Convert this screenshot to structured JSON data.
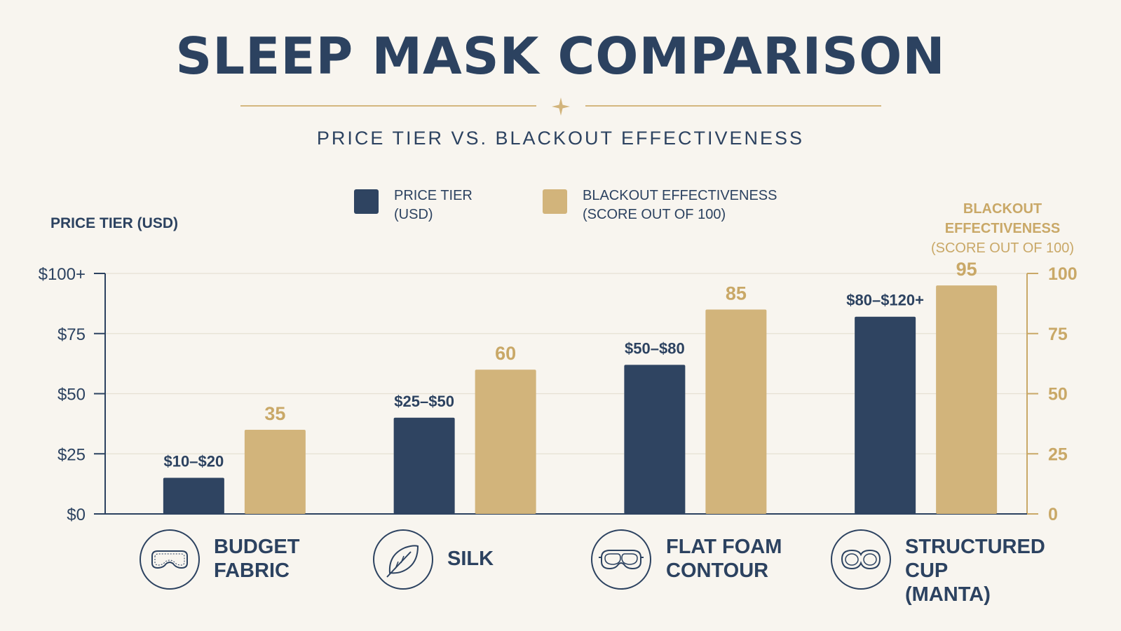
{
  "title": "SLEEP MASK COMPARISON",
  "subtitle": "PRICE TIER VS. BLACKOUT EFFECTIVENESS",
  "legend": {
    "price": {
      "line1": "PRICE TIER",
      "line2": "(USD)"
    },
    "blackout": {
      "line1": "BLACKOUT EFFECTIVENESS",
      "line2": "(SCORE OUT OF 100)"
    }
  },
  "left_axis_title": "PRICE TIER (USD)",
  "right_axis_title": {
    "line1": "BLACKOUT EFFECTIVENESS",
    "line2": "(SCORE OUT OF 100)"
  },
  "colors": {
    "price": "#2f4461",
    "blackout": "#d2b47b",
    "axis": "#2c4260",
    "gold_text": "#c9a867"
  },
  "categories_display": [
    {
      "line1": "BUDGET",
      "line2": "FABRIC",
      "icon": "mask-outline-icon"
    },
    {
      "line1": "SILK",
      "line2": "",
      "icon": "leaf-icon"
    },
    {
      "line1": "FLAT FOAM",
      "line2": "CONTOUR",
      "icon": "foam-mask-icon"
    },
    {
      "line1": "STRUCTURED",
      "line2": "CUP (MANTA)",
      "icon": "cup-mask-icon"
    }
  ],
  "chart_data": {
    "type": "bar",
    "title": "SLEEP MASK COMPARISON",
    "subtitle": "PRICE TIER VS. BLACKOUT EFFECTIVENESS",
    "categories": [
      "BUDGET FABRIC",
      "SILK",
      "FLAT FOAM CONTOUR",
      "STRUCTURED CUP (MANTA)"
    ],
    "series": [
      {
        "name": "PRICE TIER (USD)",
        "axis": "left",
        "values": [
          15,
          40,
          62,
          82
        ],
        "labels": [
          "$10–$20",
          "$25–$50",
          "$50–$80",
          "$80–$120+"
        ]
      },
      {
        "name": "BLACKOUT EFFECTIVENESS (SCORE OUT OF 100)",
        "axis": "right",
        "values": [
          35,
          60,
          85,
          95
        ],
        "labels": [
          "35",
          "60",
          "85",
          "95"
        ]
      }
    ],
    "y_left": {
      "label": "PRICE TIER (USD)",
      "ylim": [
        0,
        100
      ],
      "ticks": [
        0,
        25,
        50,
        75,
        100
      ],
      "tick_labels": [
        "$0",
        "$25",
        "$50",
        "$75",
        "$100+"
      ]
    },
    "y_right": {
      "label": "BLACKOUT EFFECTIVENESS (SCORE OUT OF 100)",
      "ylim": [
        0,
        100
      ],
      "ticks": [
        0,
        25,
        50,
        75,
        100
      ],
      "tick_labels": [
        "0",
        "25",
        "50",
        "75",
        "100"
      ]
    },
    "grid": true,
    "legend_position": "top-center"
  }
}
